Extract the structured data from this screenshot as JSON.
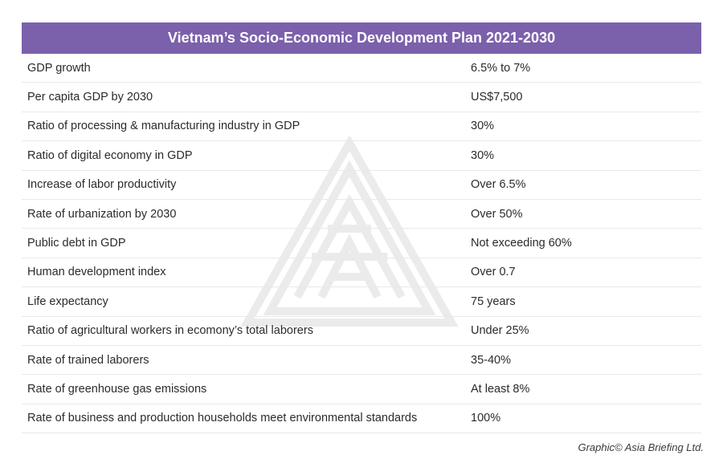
{
  "title": "Vietnam’s Socio-Economic Development Plan 2021-2030",
  "rows": [
    {
      "label": "GDP growth",
      "value": "6.5% to 7%"
    },
    {
      "label": "Per capita GDP by 2030",
      "value": "US$7,500"
    },
    {
      "label": "Ratio of processing & manufacturing industry in GDP",
      "value": "30%"
    },
    {
      "label": "Ratio of digital economy in GDP",
      "value": "30%"
    },
    {
      "label": "Increase of labor productivity",
      "value": "Over 6.5%"
    },
    {
      "label": "Rate of urbanization by 2030",
      "value": "Over 50%"
    },
    {
      "label": "Public debt in GDP",
      "value": "Not exceeding 60%"
    },
    {
      "label": "Human development index",
      "value": "Over 0.7"
    },
    {
      "label": "Life expectancy",
      "value": "75 years"
    },
    {
      "label": "Ratio of agricultural workers in ecomony’s total laborers",
      "value": "Under 25%"
    },
    {
      "label": "Rate of trained laborers",
      "value": "35-40%"
    },
    {
      "label": "Rate of greenhouse gas emissions",
      "value": "At least 8%"
    },
    {
      "label": "Rate of business and production households meet environmental standards",
      "value": "100%"
    }
  ],
  "credit": "Graphic© Asia Briefing Ltd.",
  "colors": {
    "header_bg": "#7b60ac",
    "header_text": "#ffffff",
    "row_divider": "#e9e9e9",
    "watermark": "#b8b8b8"
  },
  "icons": {
    "watermark": "asia-briefing-logo-icon"
  }
}
